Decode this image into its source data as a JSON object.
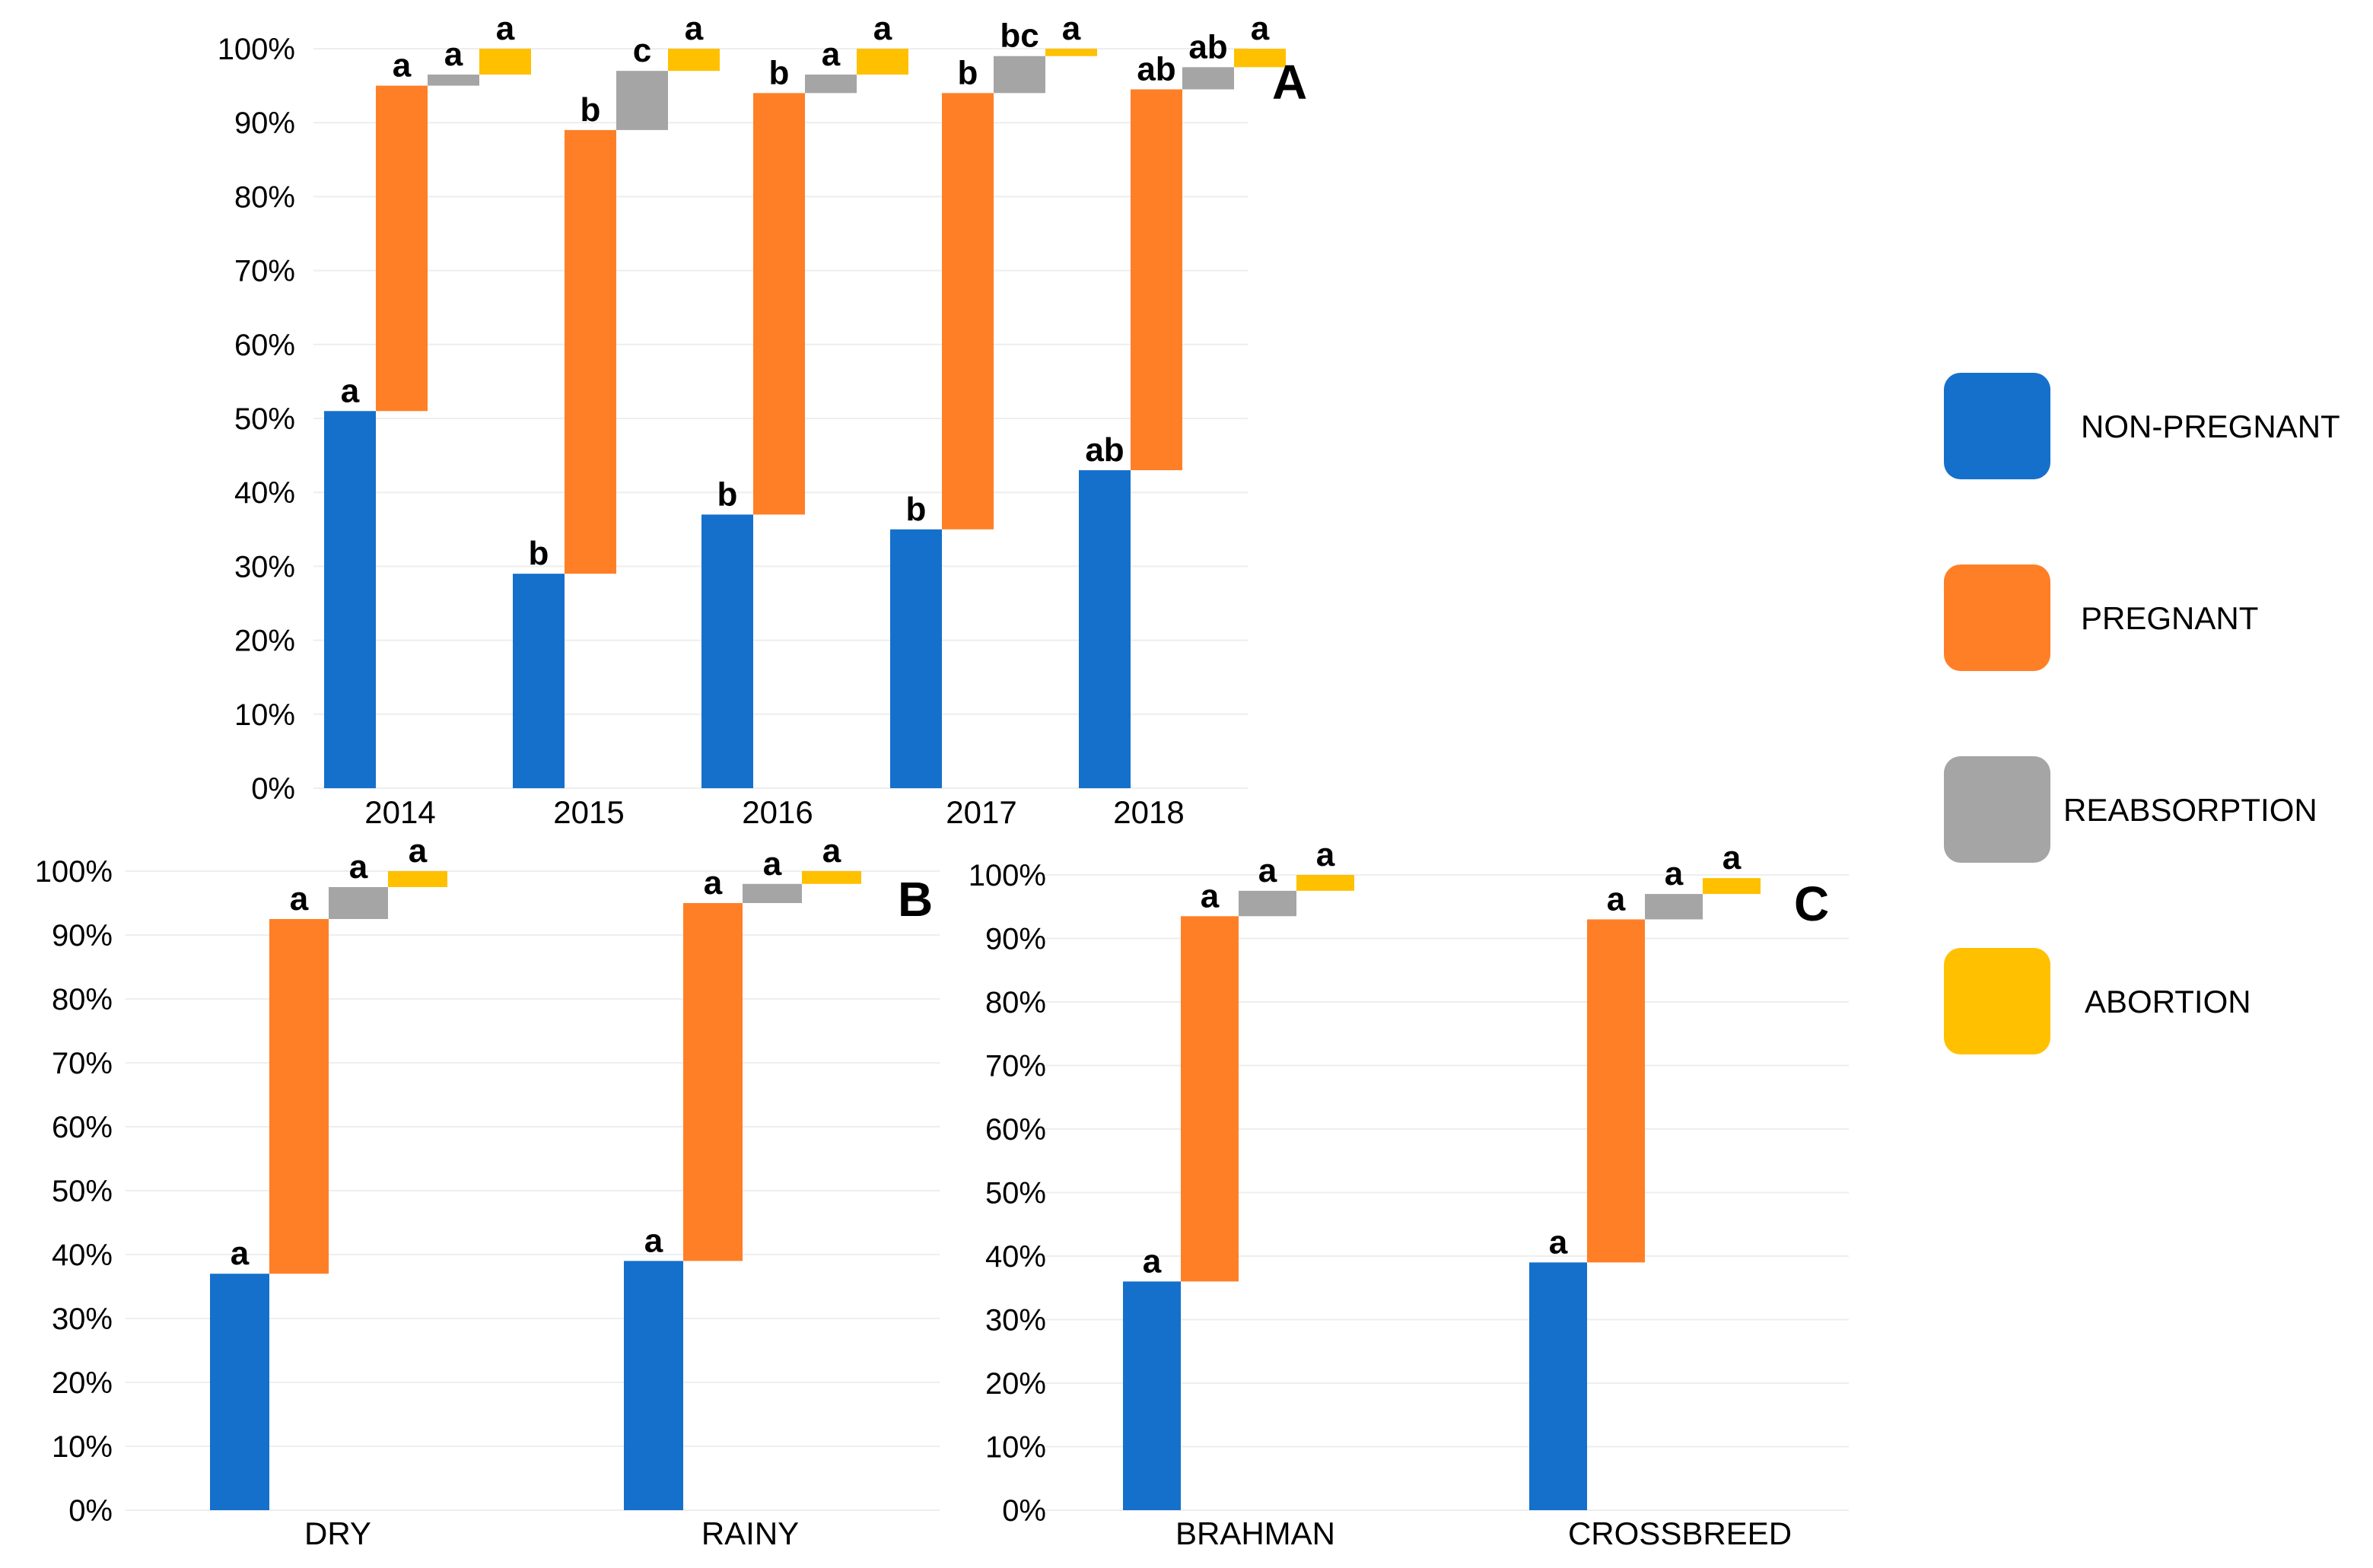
{
  "legend": {
    "items": [
      {
        "name": "NON-PREGNANT",
        "color": "#1570CC"
      },
      {
        "name": "PREGNANT",
        "color": "#FF7F27"
      },
      {
        "name": "REABSORPTION",
        "color": "#A5A5A5"
      },
      {
        "name": "ABORTION",
        "color": "#FFC000"
      }
    ]
  },
  "chart_data": [
    {
      "panel": "A",
      "type": "bar",
      "stacking": "waterfall",
      "ylim": [
        0,
        100
      ],
      "ytick_labels": [
        "0%",
        "10%",
        "20%",
        "30%",
        "40%",
        "50%",
        "60%",
        "70%",
        "80%",
        "90%",
        "100%"
      ],
      "categories": [
        "2014",
        "2015",
        "2016",
        "2017",
        "2018"
      ],
      "series": [
        {
          "name": "NON-PREGNANT",
          "values": [
            51,
            29,
            37,
            35,
            43
          ],
          "labels": [
            "a",
            "b",
            "b",
            "b",
            "ab"
          ]
        },
        {
          "name": "PREGNANT",
          "values": [
            44,
            60,
            57,
            59,
            51.5
          ],
          "labels": [
            "a",
            "b",
            "b",
            "b",
            "ab"
          ]
        },
        {
          "name": "REABSORPTION",
          "values": [
            1.5,
            8,
            2.5,
            5,
            3
          ],
          "labels": [
            "a",
            "c",
            "a",
            "bc",
            "ab"
          ]
        },
        {
          "name": "ABORTION",
          "values": [
            3.5,
            3,
            3.5,
            1,
            2.5
          ],
          "labels": [
            "a",
            "a",
            "a",
            "a",
            "a"
          ]
        }
      ]
    },
    {
      "panel": "B",
      "type": "bar",
      "stacking": "waterfall",
      "ylim": [
        0,
        100
      ],
      "ytick_labels": [
        "0%",
        "10%",
        "20%",
        "30%",
        "40%",
        "50%",
        "60%",
        "70%",
        "80%",
        "90%",
        "100%"
      ],
      "categories": [
        "DRY",
        "RAINY"
      ],
      "series": [
        {
          "name": "NON-PREGNANT",
          "values": [
            37,
            39
          ],
          "labels": [
            "a",
            "a"
          ]
        },
        {
          "name": "PREGNANT",
          "values": [
            55.5,
            56
          ],
          "labels": [
            "a",
            "a"
          ]
        },
        {
          "name": "REABSORPTION",
          "values": [
            5,
            3
          ],
          "labels": [
            "a",
            "a"
          ]
        },
        {
          "name": "ABORTION",
          "values": [
            2.5,
            2
          ],
          "labels": [
            "a",
            "a"
          ]
        }
      ]
    },
    {
      "panel": "C",
      "type": "bar",
      "stacking": "waterfall",
      "ylim": [
        0,
        100
      ],
      "ytick_labels": [
        "0%",
        "10%",
        "20%",
        "30%",
        "40%",
        "50%",
        "60%",
        "70%",
        "80%",
        "90%",
        "100%"
      ],
      "categories": [
        "BRAHMAN",
        "CROSSBREED"
      ],
      "series": [
        {
          "name": "NON-PREGNANT",
          "values": [
            36,
            39
          ],
          "labels": [
            "a",
            "a"
          ]
        },
        {
          "name": "PREGNANT",
          "values": [
            57.5,
            54
          ],
          "labels": [
            "a",
            "a"
          ]
        },
        {
          "name": "REABSORPTION",
          "values": [
            4,
            4
          ],
          "labels": [
            "a",
            "a"
          ]
        },
        {
          "name": "ABORTION",
          "values": [
            2.5,
            2.5
          ],
          "labels": [
            "a",
            "a"
          ]
        }
      ]
    }
  ]
}
